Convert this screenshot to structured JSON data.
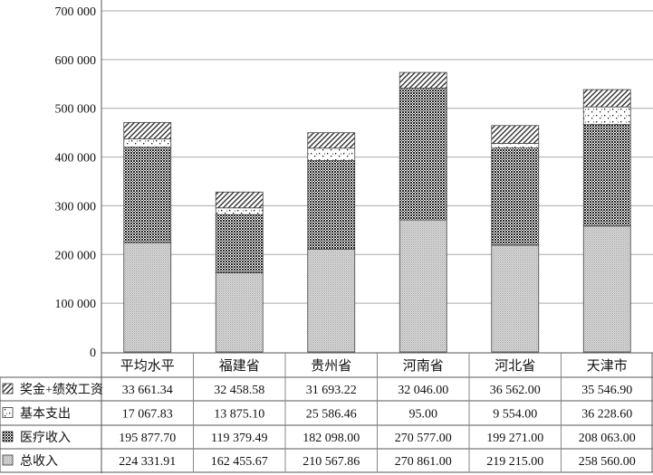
{
  "chart_data": {
    "type": "bar",
    "stacked": true,
    "title": "",
    "xlabel": "",
    "ylabel": "",
    "ylim": [
      0,
      700000
    ],
    "yticks": [
      0,
      100000,
      200000,
      300000,
      400000,
      500000,
      600000,
      700000
    ],
    "ytick_labels": [
      "0",
      "100 000",
      "200 000",
      "300 000",
      "400 000",
      "500 000",
      "600 000",
      "700 000"
    ],
    "grid": true,
    "legend_placement": "table-left",
    "categories": [
      "平均水平",
      "福建省",
      "贵州省",
      "河南省",
      "河北省",
      "天津市"
    ],
    "series": [
      {
        "name": "奖金+绩效工资",
        "pattern": "diagonal-hatch",
        "values": [
          33661.34,
          32458.58,
          31693.22,
          32046.0,
          36562.0,
          35546.9
        ],
        "labels": [
          "33 661.34",
          "32 458.58",
          "31 693.22",
          "32 046.00",
          "36 562.00",
          "35 546.90"
        ]
      },
      {
        "name": "基本支出",
        "pattern": "dots",
        "values": [
          17067.83,
          13875.1,
          25586.46,
          95.0,
          9554.0,
          36228.6
        ],
        "labels": [
          "17 067.83",
          "13 875.10",
          "25 586.46",
          "95.00",
          "9 554.00",
          "36 228.60"
        ]
      },
      {
        "name": "医疗收入",
        "pattern": "dark-checker",
        "values": [
          195877.7,
          119379.49,
          182098.0,
          270577.0,
          199271.0,
          208063.0
        ],
        "labels": [
          "195 877.70",
          "119 379.49",
          "182 098.00",
          "270 577.00",
          "199 271.00",
          "208 063.00"
        ]
      },
      {
        "name": "总收入",
        "pattern": "light-checker",
        "values": [
          224331.91,
          162455.67,
          210567.86,
          270861.0,
          219215.0,
          258560.0
        ],
        "labels": [
          "224 331.91",
          "162 455.67",
          "210 567.86",
          "270 861.00",
          "219 215.00",
          "258 560.00"
        ]
      }
    ],
    "stack_order_bottom_to_top": [
      "总收入",
      "医疗收入",
      "基本支出",
      "奖金+绩效工资"
    ]
  }
}
